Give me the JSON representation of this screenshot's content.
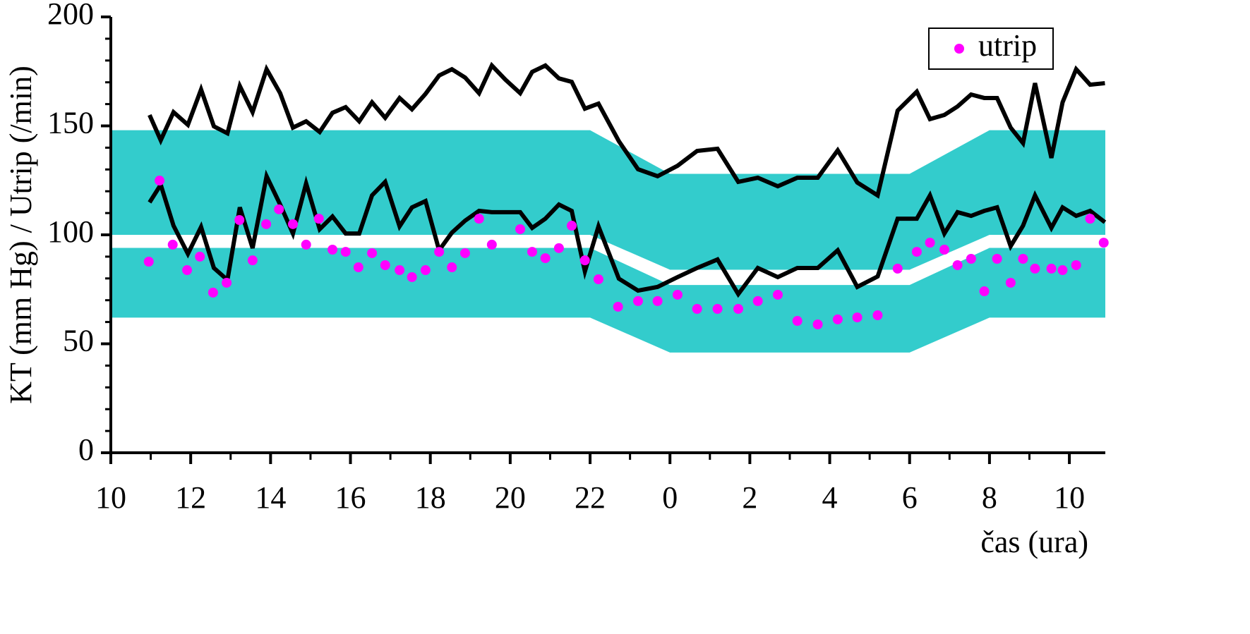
{
  "chart_data": {
    "type": "line",
    "ylabel": "KT (mm Hg) / Utrip (/min)",
    "xlabel": "čas (ura)",
    "xlim": [
      10,
      34.9
    ],
    "ylim": [
      0,
      200
    ],
    "xticks": [
      10,
      12,
      14,
      16,
      18,
      20,
      22,
      {
        "value": 24,
        "label": "0"
      },
      {
        "value": 26,
        "label": "2"
      },
      {
        "value": 28,
        "label": "4"
      },
      {
        "value": 30,
        "label": "6"
      },
      {
        "value": 32,
        "label": "8"
      },
      {
        "value": 34,
        "label": "10"
      }
    ],
    "yticks": [
      0,
      50,
      100,
      150,
      200
    ],
    "legend": "upper right",
    "bands": [
      {
        "color": "#33cccc",
        "x": [
          10,
          22,
          24,
          30,
          32,
          34.9
        ],
        "upper": [
          148,
          148,
          128,
          128,
          148,
          148
        ],
        "lower": [
          100,
          100,
          84,
          84,
          100,
          100
        ]
      },
      {
        "color": "#33cccc",
        "x": [
          10,
          22,
          24,
          30,
          32,
          34.9
        ],
        "upper": [
          94,
          94,
          77,
          77,
          94,
          94
        ],
        "lower": [
          62,
          62,
          46,
          46,
          62,
          62
        ]
      }
    ],
    "series": [
      {
        "color": "#000000",
        "style": "line",
        "x": [
          10.97,
          11.25,
          11.57,
          11.93,
          12.26,
          12.58,
          12.92,
          13.23,
          13.55,
          13.9,
          14.24,
          14.56,
          14.89,
          15.23,
          15.55,
          15.88,
          16.22,
          16.54,
          16.87,
          17.23,
          17.54,
          17.88,
          18.22,
          18.54,
          18.87,
          19.22,
          19.54,
          19.88,
          20.25,
          20.55,
          20.88,
          21.22,
          21.54,
          21.87,
          22.21,
          22.72,
          23.2,
          23.69,
          24.19,
          24.68,
          25.19,
          25.71,
          26.2,
          26.7,
          27.19,
          27.7,
          28.2,
          28.69,
          29.2,
          29.7,
          30.18,
          30.51,
          30.87,
          31.2,
          31.54,
          31.87,
          32.19,
          32.53,
          32.84,
          33.14,
          33.55,
          33.83,
          34.17,
          34.52,
          34.89
        ],
        "values": [
          155,
          143.4,
          156.3,
          150.5,
          166.7,
          149.8,
          146.6,
          168.3,
          156.3,
          176,
          165,
          149.2,
          152.1,
          147.2,
          156,
          158.6,
          152.1,
          160.8,
          153.7,
          162.8,
          157.6,
          164.7,
          173.1,
          176,
          172.2,
          165,
          177.7,
          171.2,
          165,
          174.8,
          177.7,
          171.8,
          170.2,
          157.9,
          160.2,
          143,
          130.1,
          126.9,
          131.7,
          138.5,
          139.5,
          124.3,
          126.2,
          122.3,
          126.2,
          126.2,
          138.8,
          124,
          118.1,
          157,
          165.7,
          153.1,
          155,
          158.9,
          164.4,
          162.8,
          162.8,
          149.2,
          142.1,
          169.6,
          135.3,
          160.8,
          176,
          168.9,
          169.6
        ]
      },
      {
        "color": "#000000",
        "style": "line",
        "x": [
          10.97,
          11.25,
          11.57,
          11.93,
          12.26,
          12.58,
          12.92,
          13.23,
          13.55,
          13.9,
          14.24,
          14.56,
          14.89,
          15.23,
          15.55,
          15.88,
          16.22,
          16.54,
          16.87,
          17.23,
          17.54,
          17.88,
          18.22,
          18.54,
          18.87,
          19.22,
          19.54,
          19.88,
          20.25,
          20.55,
          20.88,
          21.22,
          21.54,
          21.87,
          22.21,
          22.72,
          23.2,
          23.69,
          24.19,
          24.68,
          25.19,
          25.71,
          26.2,
          26.7,
          27.19,
          27.7,
          28.2,
          28.69,
          29.2,
          29.7,
          30.18,
          30.51,
          30.87,
          31.2,
          31.54,
          31.87,
          32.19,
          32.53,
          32.84,
          33.14,
          33.55,
          33.83,
          34.17,
          34.52,
          34.89
        ],
        "values": [
          114.9,
          123,
          104.2,
          91.3,
          103.6,
          84.8,
          79.3,
          112.6,
          93.9,
          126.9,
          113.9,
          100.6,
          123.6,
          102.6,
          108.4,
          100.6,
          100.6,
          118.1,
          124.3,
          103.9,
          112.6,
          115.5,
          92.9,
          101,
          106.5,
          111,
          110.4,
          110.4,
          110.4,
          103.2,
          107.4,
          113.9,
          111,
          83.2,
          103.9,
          79.9,
          74.4,
          76.1,
          80.6,
          84.8,
          88.7,
          72.8,
          84.8,
          80.6,
          84.8,
          84.8,
          92.9,
          76.1,
          80.9,
          107.4,
          107.4,
          118.1,
          100.6,
          110.4,
          108.7,
          111,
          112.6,
          94.8,
          104.2,
          118.1,
          103.2,
          112.6,
          108.7,
          111,
          105.8
        ]
      },
      {
        "name": "utrip",
        "color": "#ff00ff",
        "style": "markers",
        "x": [
          10.95,
          11.22,
          11.55,
          11.91,
          12.23,
          12.56,
          12.9,
          13.22,
          13.55,
          13.89,
          14.21,
          14.56,
          14.89,
          15.21,
          15.55,
          15.88,
          16.2,
          16.54,
          16.87,
          17.23,
          17.54,
          17.88,
          18.22,
          18.54,
          18.87,
          19.22,
          19.54,
          20.25,
          20.55,
          20.88,
          21.22,
          21.54,
          21.87,
          22.21,
          22.7,
          23.2,
          23.69,
          24.19,
          24.68,
          25.19,
          25.71,
          26.2,
          26.7,
          27.19,
          27.7,
          28.2,
          28.69,
          29.2,
          29.7,
          30.18,
          30.51,
          30.87,
          31.2,
          31.54,
          31.87,
          32.19,
          32.53,
          32.84,
          33.14,
          33.55,
          33.83,
          34.17,
          34.52,
          34.86
        ],
        "values": [
          87.7,
          124.9,
          95.5,
          83.8,
          90,
          73.5,
          78,
          106.8,
          88.3,
          104.9,
          111.7,
          104.9,
          95.5,
          107.4,
          93.2,
          92.2,
          85.1,
          91.6,
          86.1,
          83.8,
          80.6,
          83.8,
          92.2,
          85.1,
          91.6,
          107.4,
          95.5,
          102.6,
          92.2,
          89.3,
          93.9,
          104.2,
          88.3,
          79.6,
          67,
          69.6,
          69.6,
          72.5,
          66,
          66,
          66,
          69.6,
          72.5,
          60.5,
          58.9,
          61.2,
          62.1,
          63.1,
          84.5,
          92.2,
          96.4,
          93.2,
          86.1,
          89,
          74.1,
          89,
          78,
          89,
          84.5,
          84.5,
          83.8,
          86.1,
          107.4,
          96.4
        ]
      }
    ]
  }
}
